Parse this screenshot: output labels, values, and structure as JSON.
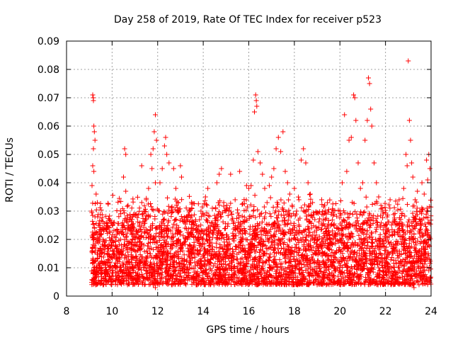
{
  "chart_data": {
    "type": "scatter",
    "title": "Day 258 of 2019, Rate Of TEC Index for receiver p523",
    "xlabel": "GPS time / hours",
    "ylabel": "ROTI / TECUs",
    "xlim": [
      8,
      24
    ],
    "ylim": [
      0,
      0.09
    ],
    "xticks": [
      8,
      10,
      12,
      14,
      16,
      18,
      20,
      22,
      24
    ],
    "yticks": [
      0,
      0.01,
      0.02,
      0.03,
      0.04,
      0.05,
      0.06,
      0.07,
      0.08,
      0.09
    ],
    "xtick_labels": [
      "8",
      "10",
      "12",
      "14",
      "16",
      "18",
      "20",
      "22",
      "24"
    ],
    "ytick_labels": [
      "0",
      "0.01",
      "0.02",
      "0.03",
      "0.04",
      "0.05",
      "0.06",
      "0.07",
      "0.08",
      "0.09"
    ],
    "grid": true,
    "marker": "+",
    "color": "#ff0000",
    "series": [
      {
        "name": "ROTI",
        "points": [
          [
            9.15,
            0.071
          ],
          [
            9.17,
            0.07
          ],
          [
            9.18,
            0.069
          ],
          [
            9.2,
            0.06
          ],
          [
            9.22,
            0.058
          ],
          [
            9.25,
            0.055
          ],
          [
            9.18,
            0.052
          ],
          [
            9.15,
            0.046
          ],
          [
            9.2,
            0.044
          ],
          [
            9.12,
            0.039
          ],
          [
            9.3,
            0.036
          ],
          [
            9.35,
            0.033
          ],
          [
            9.1,
            0.03
          ],
          [
            9.25,
            0.028
          ],
          [
            9.4,
            0.025
          ],
          [
            9.5,
            0.022
          ],
          [
            9.6,
            0.02
          ],
          [
            9.7,
            0.018
          ],
          [
            9.8,
            0.015
          ],
          [
            9.9,
            0.012
          ],
          [
            9.3,
            0.01
          ],
          [
            9.5,
            0.008
          ],
          [
            9.7,
            0.007
          ],
          [
            10.0,
            0.009
          ],
          [
            10.2,
            0.013
          ],
          [
            10.4,
            0.018
          ],
          [
            10.55,
            0.052
          ],
          [
            10.6,
            0.05
          ],
          [
            10.5,
            0.042
          ],
          [
            10.6,
            0.037
          ],
          [
            10.7,
            0.032
          ],
          [
            10.8,
            0.027
          ],
          [
            10.9,
            0.022
          ],
          [
            10.3,
            0.016
          ],
          [
            10.5,
            0.011
          ],
          [
            10.8,
            0.008
          ],
          [
            11.0,
            0.021
          ],
          [
            11.2,
            0.025
          ],
          [
            11.3,
            0.046
          ],
          [
            11.4,
            0.03
          ],
          [
            11.5,
            0.034
          ],
          [
            11.6,
            0.038
          ],
          [
            11.7,
            0.05
          ],
          [
            11.8,
            0.052
          ],
          [
            11.85,
            0.058
          ],
          [
            11.9,
            0.064
          ],
          [
            11.95,
            0.055
          ],
          [
            11.75,
            0.045
          ],
          [
            11.9,
            0.04
          ],
          [
            11.6,
            0.028
          ],
          [
            11.4,
            0.018
          ],
          [
            11.2,
            0.012
          ],
          [
            11.9,
            0.003
          ],
          [
            11.1,
            0.007
          ],
          [
            12.1,
            0.04
          ],
          [
            12.2,
            0.045
          ],
          [
            12.3,
            0.053
          ],
          [
            12.35,
            0.056
          ],
          [
            12.4,
            0.05
          ],
          [
            12.5,
            0.047
          ],
          [
            12.7,
            0.045
          ],
          [
            12.8,
            0.038
          ],
          [
            12.9,
            0.033
          ],
          [
            13.0,
            0.046
          ],
          [
            13.05,
            0.042
          ],
          [
            12.6,
            0.03
          ],
          [
            12.4,
            0.022
          ],
          [
            12.2,
            0.014
          ],
          [
            12.5,
            0.009
          ],
          [
            12.8,
            0.006
          ],
          [
            13.2,
            0.024
          ],
          [
            13.3,
            0.02
          ],
          [
            13.5,
            0.026
          ],
          [
            13.6,
            0.018
          ],
          [
            13.8,
            0.022
          ],
          [
            13.9,
            0.03
          ],
          [
            13.4,
            0.012
          ],
          [
            13.7,
            0.008
          ],
          [
            13.9,
            0.005
          ],
          [
            14.0,
            0.02
          ],
          [
            14.1,
            0.035
          ],
          [
            14.2,
            0.038
          ],
          [
            14.4,
            0.031
          ],
          [
            14.6,
            0.04
          ],
          [
            14.7,
            0.043
          ],
          [
            14.8,
            0.045
          ],
          [
            14.9,
            0.033
          ],
          [
            14.5,
            0.024
          ],
          [
            14.3,
            0.015
          ],
          [
            14.6,
            0.01
          ],
          [
            14.8,
            0.007
          ],
          [
            15.0,
            0.03
          ],
          [
            15.2,
            0.043
          ],
          [
            15.4,
            0.034
          ],
          [
            15.6,
            0.044
          ],
          [
            15.8,
            0.026
          ],
          [
            15.9,
            0.039
          ],
          [
            15.3,
            0.02
          ],
          [
            15.5,
            0.013
          ],
          [
            15.7,
            0.008
          ],
          [
            15.1,
            0.006
          ],
          [
            16.0,
            0.038
          ],
          [
            16.1,
            0.039
          ],
          [
            16.2,
            0.048
          ],
          [
            16.25,
            0.065
          ],
          [
            16.3,
            0.071
          ],
          [
            16.33,
            0.069
          ],
          [
            16.35,
            0.067
          ],
          [
            16.4,
            0.051
          ],
          [
            16.5,
            0.047
          ],
          [
            16.6,
            0.043
          ],
          [
            16.1,
            0.028
          ],
          [
            16.3,
            0.02
          ],
          [
            16.5,
            0.013
          ],
          [
            16.2,
            0.008
          ],
          [
            16.4,
            0.004
          ],
          [
            16.7,
            0.038
          ],
          [
            16.8,
            0.033
          ],
          [
            16.9,
            0.039
          ],
          [
            17.0,
            0.042
          ],
          [
            17.1,
            0.045
          ],
          [
            17.2,
            0.052
          ],
          [
            17.3,
            0.056
          ],
          [
            17.4,
            0.051
          ],
          [
            17.5,
            0.058
          ],
          [
            17.6,
            0.044
          ],
          [
            17.7,
            0.04
          ],
          [
            17.8,
            0.036
          ],
          [
            17.9,
            0.032
          ],
          [
            17.0,
            0.025
          ],
          [
            17.3,
            0.018
          ],
          [
            17.6,
            0.012
          ],
          [
            17.2,
            0.007
          ],
          [
            18.0,
            0.038
          ],
          [
            18.1,
            0.03
          ],
          [
            18.2,
            0.034
          ],
          [
            18.3,
            0.048
          ],
          [
            18.4,
            0.052
          ],
          [
            18.5,
            0.047
          ],
          [
            18.6,
            0.04
          ],
          [
            18.7,
            0.036
          ],
          [
            18.8,
            0.033
          ],
          [
            18.9,
            0.027
          ],
          [
            18.2,
            0.022
          ],
          [
            18.5,
            0.016
          ],
          [
            18.7,
            0.01
          ],
          [
            18.4,
            0.006
          ],
          [
            19.0,
            0.024
          ],
          [
            19.2,
            0.034
          ],
          [
            19.4,
            0.029
          ],
          [
            19.6,
            0.025
          ],
          [
            19.8,
            0.021
          ],
          [
            19.3,
            0.015
          ],
          [
            19.5,
            0.01
          ],
          [
            19.7,
            0.007
          ],
          [
            19.9,
            0.005
          ],
          [
            20.0,
            0.03
          ],
          [
            20.1,
            0.04
          ],
          [
            20.2,
            0.064
          ],
          [
            20.3,
            0.044
          ],
          [
            20.4,
            0.055
          ],
          [
            20.5,
            0.056
          ],
          [
            20.6,
            0.071
          ],
          [
            20.65,
            0.07
          ],
          [
            20.7,
            0.062
          ],
          [
            20.8,
            0.047
          ],
          [
            20.9,
            0.038
          ],
          [
            20.3,
            0.026
          ],
          [
            20.5,
            0.018
          ],
          [
            20.7,
            0.012
          ],
          [
            20.4,
            0.008
          ],
          [
            21.0,
            0.04
          ],
          [
            21.1,
            0.055
          ],
          [
            21.2,
            0.062
          ],
          [
            21.25,
            0.077
          ],
          [
            21.3,
            0.075
          ],
          [
            21.35,
            0.066
          ],
          [
            21.4,
            0.06
          ],
          [
            21.5,
            0.047
          ],
          [
            21.6,
            0.04
          ],
          [
            21.7,
            0.035
          ],
          [
            21.8,
            0.032
          ],
          [
            21.9,
            0.029
          ],
          [
            21.2,
            0.023
          ],
          [
            21.5,
            0.016
          ],
          [
            21.7,
            0.01
          ],
          [
            21.3,
            0.006
          ],
          [
            22.0,
            0.025
          ],
          [
            22.2,
            0.034
          ],
          [
            22.4,
            0.027
          ],
          [
            22.6,
            0.034
          ],
          [
            22.8,
            0.038
          ],
          [
            22.9,
            0.05
          ],
          [
            22.95,
            0.046
          ],
          [
            23.0,
            0.083
          ],
          [
            23.05,
            0.062
          ],
          [
            23.1,
            0.055
          ],
          [
            23.15,
            0.047
          ],
          [
            23.2,
            0.042
          ],
          [
            23.3,
            0.034
          ],
          [
            22.5,
            0.018
          ],
          [
            22.8,
            0.011
          ],
          [
            23.1,
            0.007
          ],
          [
            23.25,
            0.003
          ],
          [
            23.4,
            0.037
          ],
          [
            23.5,
            0.03
          ],
          [
            23.6,
            0.04
          ],
          [
            23.7,
            0.036
          ],
          [
            23.8,
            0.048
          ],
          [
            23.9,
            0.05
          ],
          [
            23.95,
            0.045
          ],
          [
            23.85,
            0.041
          ],
          [
            23.5,
            0.022
          ],
          [
            23.7,
            0.015
          ],
          [
            23.9,
            0.009
          ],
          [
            23.6,
            0.006
          ]
        ]
      }
    ],
    "band": {
      "description": "dense background cloud of points",
      "x_range": [
        9.1,
        24
      ],
      "y_min": 0.004,
      "y_max": 0.03
    }
  }
}
